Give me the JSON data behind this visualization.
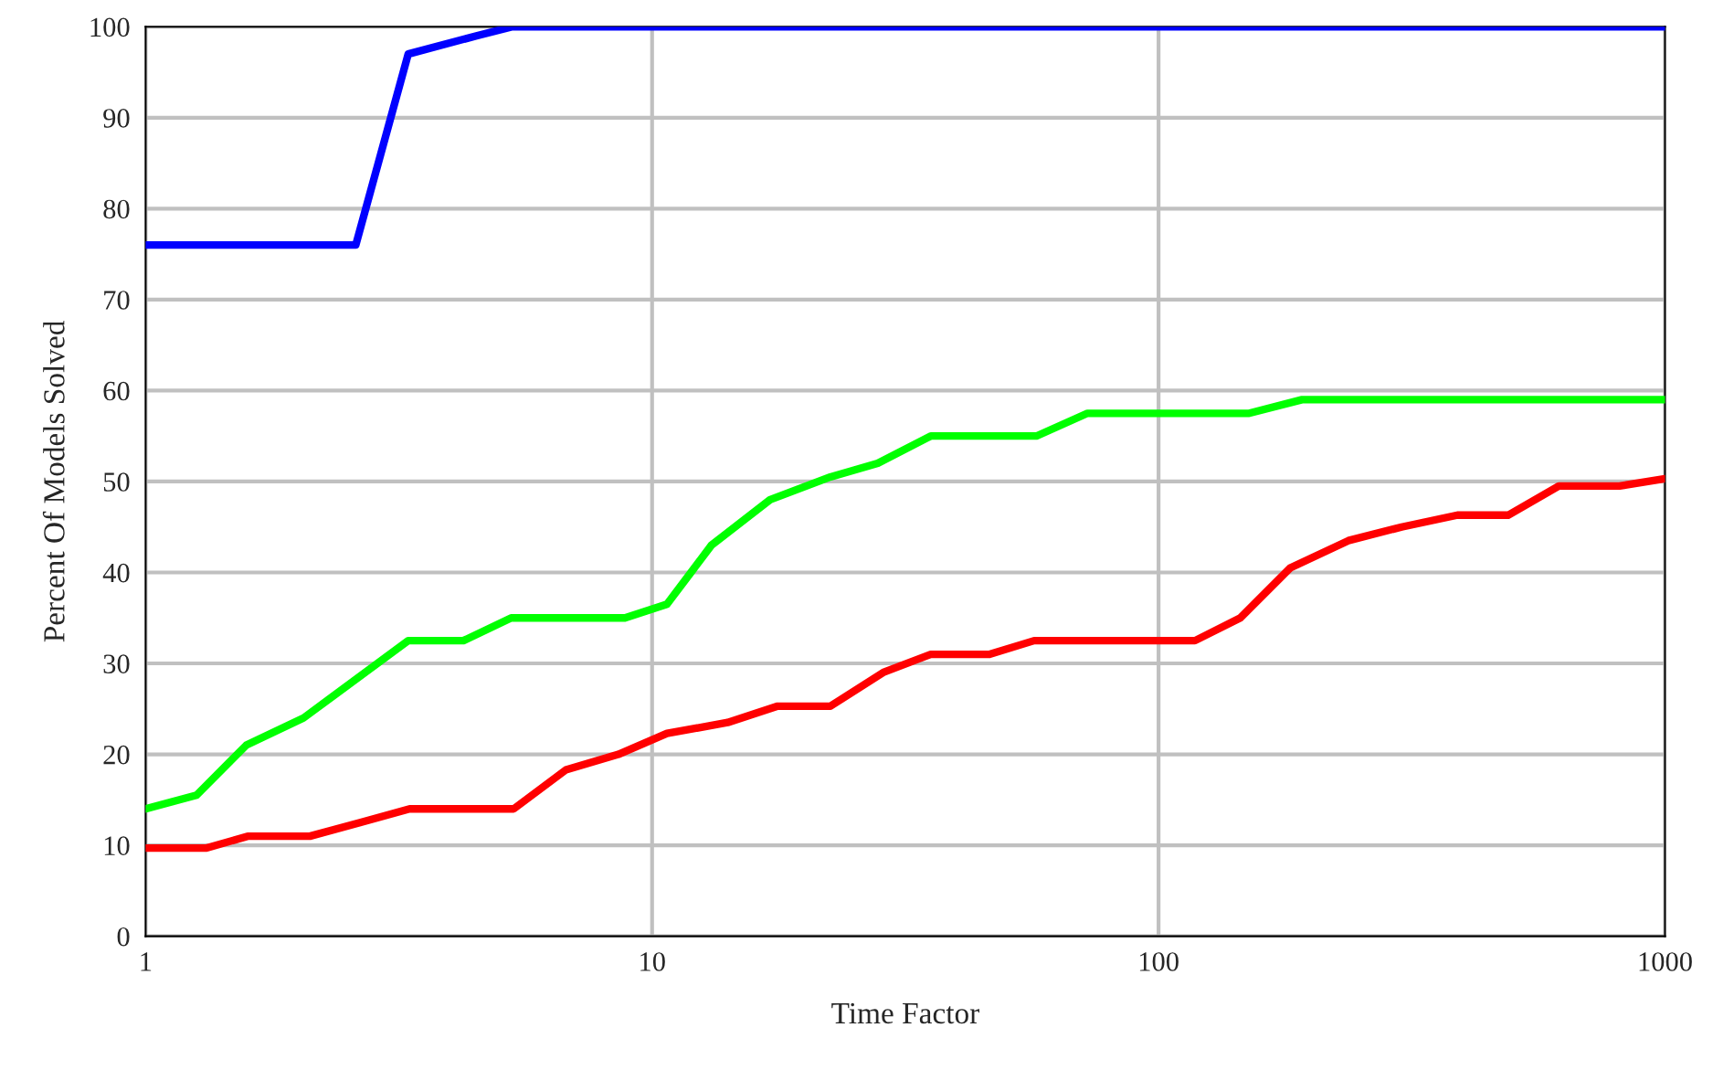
{
  "chart_data": {
    "type": "line",
    "xlabel": "Time Factor",
    "ylabel": "Percent Of Models Solved",
    "log": "x",
    "xlim": [
      1,
      1000
    ],
    "xticks": [
      1,
      10,
      100,
      1000
    ],
    "ylim": [
      0,
      100
    ],
    "yticks": [
      0,
      10,
      20,
      30,
      40,
      50,
      60,
      70,
      80,
      90,
      100
    ],
    "grid": true,
    "marker": "none",
    "line_style": "solid",
    "series": [
      {
        "color": "#ff0000",
        "x": [
          1,
          1.32,
          1.59,
          2.11,
          2.65,
          3.32,
          5.33,
          6.76,
          8.58,
          10.7,
          14.1,
          17.7,
          22.5,
          28.6,
          35.5,
          46.4,
          56.8,
          118,
          145,
          182,
          237,
          302,
          389,
          490,
          617,
          813,
          1000
        ],
        "values": [
          9.7,
          9.7,
          11,
          11,
          12.5,
          14,
          14,
          18.3,
          20,
          22.3,
          23.5,
          25.3,
          25.3,
          29,
          31,
          31,
          32.5,
          32.5,
          35,
          40.5,
          43.5,
          45,
          46.3,
          46.3,
          49.5,
          49.5,
          50.3
        ]
      },
      {
        "color": "#00ff00",
        "x": [
          1,
          1.26,
          1.58,
          2.05,
          3.3,
          4.24,
          5.27,
          8.84,
          10.7,
          13.1,
          17.1,
          22.5,
          27.9,
          35.5,
          57.4,
          72.4,
          151,
          192,
          1000
        ],
        "values": [
          14,
          15.5,
          21,
          24,
          32.5,
          32.5,
          35,
          35,
          36.5,
          43,
          48,
          50.5,
          52,
          55,
          55,
          57.5,
          57.5,
          59,
          59
        ]
      },
      {
        "color": "#0000ff",
        "x": [
          1,
          2.6,
          3.3,
          4.5,
          5.3,
          1000
        ],
        "values": [
          76,
          76,
          97,
          99,
          100,
          100
        ]
      }
    ]
  }
}
